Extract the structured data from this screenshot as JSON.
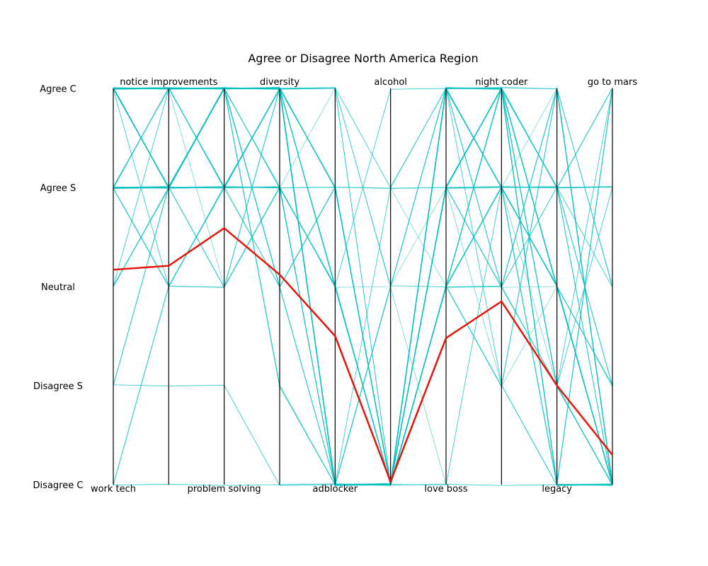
{
  "chart_data": {
    "type": "parallel_coordinates",
    "title": "Agree or Disagree North America Region",
    "levels": [
      "Agree C",
      "Agree S",
      "Neutral",
      "Disagree S",
      "Disagree C"
    ],
    "axes": [
      "work tech",
      "notice improvements",
      "problem solving",
      "diversity",
      "adblocker",
      "alcohol",
      "love boss",
      "night coder",
      "legacy",
      "go to mars"
    ],
    "background_color": "#00bfbf",
    "highlight_color": "#e8140a",
    "highlight_values": [
      1.83,
      1.79,
      1.41,
      1.88,
      2.5,
      3.97,
      2.52,
      2.15,
      3.0,
      3.7
    ],
    "background_lines": [
      [
        0,
        0,
        0,
        0,
        0,
        2,
        1,
        0,
        1,
        0
      ],
      [
        0,
        0,
        0,
        0,
        1,
        4,
        2,
        0,
        1,
        4
      ],
      [
        1,
        1,
        1,
        1,
        1,
        1,
        1,
        1,
        1,
        1
      ],
      [
        0,
        1,
        0,
        1,
        2,
        4,
        0,
        1,
        2,
        4
      ],
      [
        1,
        0,
        1,
        0,
        0,
        4,
        1,
        2,
        0,
        2
      ],
      [
        0,
        1,
        0,
        0,
        4,
        4,
        2,
        1,
        4,
        4
      ],
      [
        1,
        1,
        0,
        1,
        4,
        2,
        0,
        0,
        3,
        4
      ],
      [
        0,
        0,
        1,
        2,
        4,
        4,
        2,
        0,
        1,
        0
      ],
      [
        2,
        1,
        0,
        0,
        1,
        4,
        0,
        1,
        2,
        4
      ],
      [
        1,
        2,
        1,
        2,
        4,
        1,
        2,
        3,
        2,
        4
      ],
      [
        0,
        0,
        0,
        1,
        4,
        4,
        0,
        0,
        3,
        4
      ],
      [
        3,
        1,
        0,
        0,
        2,
        4,
        1,
        0,
        4,
        0
      ],
      [
        1,
        0,
        0,
        0,
        0,
        2,
        0,
        1,
        2,
        4
      ],
      [
        0,
        1,
        1,
        1,
        4,
        4,
        2,
        2,
        0,
        4
      ],
      [
        4,
        2,
        2,
        0,
        2,
        4,
        0,
        0,
        1,
        1
      ],
      [
        1,
        0,
        0,
        0,
        0,
        4,
        1,
        3,
        4,
        4
      ],
      [
        0,
        0,
        1,
        1,
        4,
        2,
        0,
        1,
        2,
        3
      ],
      [
        1,
        1,
        0,
        2,
        1,
        4,
        2,
        0,
        0,
        4
      ],
      [
        0,
        0,
        2,
        1,
        4,
        4,
        4,
        1,
        1,
        4
      ],
      [
        2,
        1,
        1,
        0,
        0,
        1,
        0,
        2,
        3,
        0
      ],
      [
        0,
        1,
        0,
        3,
        4,
        4,
        1,
        0,
        2,
        4
      ],
      [
        1,
        0,
        0,
        0,
        4,
        4,
        2,
        1,
        0,
        2
      ],
      [
        0,
        2,
        1,
        1,
        2,
        0,
        0,
        3,
        4,
        4
      ],
      [
        1,
        1,
        0,
        0,
        4,
        4,
        1,
        1,
        1,
        3
      ],
      [
        0,
        0,
        0,
        2,
        1,
        4,
        0,
        2,
        2,
        4
      ],
      [
        3,
        3,
        3,
        4,
        4,
        2,
        2,
        2,
        3,
        1
      ],
      [
        1,
        1,
        0,
        0,
        4,
        4,
        0,
        0,
        4,
        4
      ],
      [
        0,
        0,
        1,
        1,
        0,
        2,
        4,
        1,
        1,
        0
      ],
      [
        2,
        0,
        0,
        0,
        4,
        4,
        1,
        0,
        2,
        4
      ],
      [
        0,
        1,
        2,
        1,
        2,
        4,
        2,
        3,
        0,
        4
      ],
      [
        1,
        0,
        0,
        2,
        4,
        1,
        0,
        1,
        3,
        4
      ],
      [
        0,
        0,
        0,
        0,
        4,
        4,
        1,
        2,
        1,
        2
      ],
      [
        1,
        2,
        1,
        0,
        1,
        4,
        0,
        0,
        2,
        4
      ],
      [
        0,
        0,
        0,
        3,
        4,
        4,
        2,
        1,
        4,
        0
      ],
      [
        4,
        4,
        4,
        4,
        4,
        4,
        4,
        4,
        4,
        4
      ],
      [
        0,
        1,
        1,
        0,
        4,
        4,
        1,
        0,
        3,
        4
      ],
      [
        1,
        1,
        0,
        1,
        2,
        2,
        0,
        2,
        1,
        4
      ],
      [
        0,
        0,
        0,
        0,
        4,
        4,
        2,
        1,
        2,
        3
      ]
    ]
  }
}
